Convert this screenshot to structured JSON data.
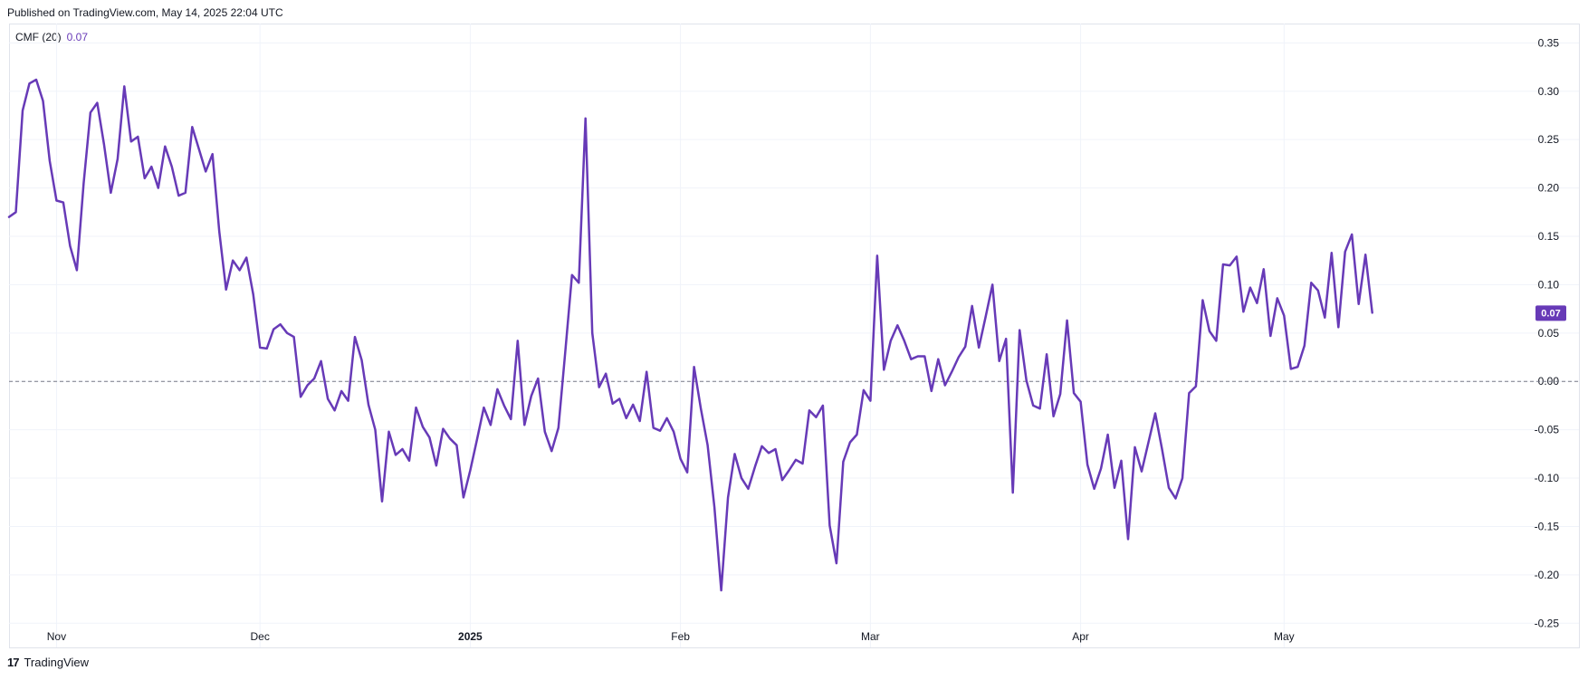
{
  "published": "Published on TradingView.com, May 14, 2025 22:04 UTC",
  "legend": {
    "name": "CMF (20)",
    "value": "0.07"
  },
  "brand": {
    "logo": "17",
    "name": "TradingView"
  },
  "colors": {
    "line": "#673ab7",
    "grid": "#f0f3fa",
    "zero": "#787b86",
    "axis_text": "#131722"
  },
  "chart_data": {
    "type": "line",
    "title": "",
    "xlabel": "",
    "ylabel": "",
    "ylim": [
      -0.275,
      0.37
    ],
    "y_ticks": [
      0.35,
      0.3,
      0.25,
      0.2,
      0.15,
      0.1,
      0.05,
      0.0,
      -0.05,
      -0.1,
      -0.15,
      -0.2,
      -0.25
    ],
    "y_tick_labels": [
      "0.35",
      "0.30",
      "0.25",
      "0.20",
      "0.15",
      "0.10",
      "0.05",
      "0.00",
      "-0.05",
      "-0.10",
      "-0.15",
      "-0.20",
      "-0.25"
    ],
    "x_ticks": [
      {
        "date": "2024-11-01",
        "label": "Nov"
      },
      {
        "date": "2024-12-01",
        "label": "Dec"
      },
      {
        "date": "2025-01-01",
        "label": "2025"
      },
      {
        "date": "2025-02-01",
        "label": "Feb"
      },
      {
        "date": "2025-03-01",
        "label": "Mar"
      },
      {
        "date": "2025-04-01",
        "label": "Apr"
      },
      {
        "date": "2025-05-01",
        "label": "May"
      }
    ],
    "x_range": [
      "2024-10-25",
      "2025-06-06"
    ],
    "reference_line": 0,
    "last_value_label": "0.07",
    "series": [
      {
        "values": [
          [
            "2024-10-25",
            0.17
          ],
          [
            "2024-10-26",
            0.175
          ],
          [
            "2024-10-27",
            0.28
          ],
          [
            "2024-10-28",
            0.308
          ],
          [
            "2024-10-29",
            0.312
          ],
          [
            "2024-10-30",
            0.29
          ],
          [
            "2024-10-31",
            0.228
          ],
          [
            "2024-11-01",
            0.187
          ],
          [
            "2024-11-02",
            0.185
          ],
          [
            "2024-11-03",
            0.14
          ],
          [
            "2024-11-04",
            0.115
          ],
          [
            "2024-11-05",
            0.205
          ],
          [
            "2024-11-06",
            0.278
          ],
          [
            "2024-11-07",
            0.288
          ],
          [
            "2024-11-08",
            0.245
          ],
          [
            "2024-11-09",
            0.195
          ],
          [
            "2024-11-10",
            0.23
          ],
          [
            "2024-11-11",
            0.305
          ],
          [
            "2024-11-12",
            0.248
          ],
          [
            "2024-11-13",
            0.253
          ],
          [
            "2024-11-14",
            0.21
          ],
          [
            "2024-11-15",
            0.222
          ],
          [
            "2024-11-16",
            0.2
          ],
          [
            "2024-11-17",
            0.243
          ],
          [
            "2024-11-18",
            0.222
          ],
          [
            "2024-11-19",
            0.192
          ],
          [
            "2024-11-20",
            0.195
          ],
          [
            "2024-11-21",
            0.263
          ],
          [
            "2024-11-22",
            0.24
          ],
          [
            "2024-11-23",
            0.217
          ],
          [
            "2024-11-24",
            0.235
          ],
          [
            "2024-11-25",
            0.155
          ],
          [
            "2024-11-26",
            0.095
          ],
          [
            "2024-11-27",
            0.125
          ],
          [
            "2024-11-28",
            0.115
          ],
          [
            "2024-11-29",
            0.128
          ],
          [
            "2024-11-30",
            0.09
          ],
          [
            "2024-12-01",
            0.035
          ],
          [
            "2024-12-02",
            0.034
          ],
          [
            "2024-12-03",
            0.054
          ],
          [
            "2024-12-04",
            0.059
          ],
          [
            "2024-12-05",
            0.05
          ],
          [
            "2024-12-06",
            0.046
          ],
          [
            "2024-12-07",
            -0.016
          ],
          [
            "2024-12-08",
            -0.004
          ],
          [
            "2024-12-09",
            0.003
          ],
          [
            "2024-12-10",
            0.021
          ],
          [
            "2024-12-11",
            -0.018
          ],
          [
            "2024-12-12",
            -0.03
          ],
          [
            "2024-12-13",
            -0.01
          ],
          [
            "2024-12-14",
            -0.02
          ],
          [
            "2024-12-15",
            0.046
          ],
          [
            "2024-12-16",
            0.022
          ],
          [
            "2024-12-17",
            -0.024
          ],
          [
            "2024-12-18",
            -0.05
          ],
          [
            "2024-12-19",
            -0.124
          ],
          [
            "2024-12-20",
            -0.052
          ],
          [
            "2024-12-21",
            -0.076
          ],
          [
            "2024-12-22",
            -0.07
          ],
          [
            "2024-12-23",
            -0.082
          ],
          [
            "2024-12-24",
            -0.027
          ],
          [
            "2024-12-25",
            -0.047
          ],
          [
            "2024-12-26",
            -0.058
          ],
          [
            "2024-12-27",
            -0.087
          ],
          [
            "2024-12-28",
            -0.049
          ],
          [
            "2024-12-29",
            -0.059
          ],
          [
            "2024-12-30",
            -0.066
          ],
          [
            "2024-12-31",
            -0.12
          ],
          [
            "2025-01-01",
            -0.092
          ],
          [
            "2025-01-02",
            -0.06
          ],
          [
            "2025-01-03",
            -0.027
          ],
          [
            "2025-01-04",
            -0.045
          ],
          [
            "2025-01-05",
            -0.008
          ],
          [
            "2025-01-06",
            -0.025
          ],
          [
            "2025-01-07",
            -0.039
          ],
          [
            "2025-01-08",
            0.042
          ],
          [
            "2025-01-09",
            -0.045
          ],
          [
            "2025-01-10",
            -0.015
          ],
          [
            "2025-01-11",
            0.003
          ],
          [
            "2025-01-12",
            -0.052
          ],
          [
            "2025-01-13",
            -0.072
          ],
          [
            "2025-01-14",
            -0.048
          ],
          [
            "2025-01-15",
            0.03
          ],
          [
            "2025-01-16",
            0.11
          ],
          [
            "2025-01-17",
            0.102
          ],
          [
            "2025-01-18",
            0.272
          ],
          [
            "2025-01-19",
            0.05
          ],
          [
            "2025-01-20",
            -0.006
          ],
          [
            "2025-01-21",
            0.008
          ],
          [
            "2025-01-22",
            -0.023
          ],
          [
            "2025-01-23",
            -0.018
          ],
          [
            "2025-01-24",
            -0.038
          ],
          [
            "2025-01-25",
            -0.024
          ],
          [
            "2025-01-26",
            -0.041
          ],
          [
            "2025-01-27",
            0.01
          ],
          [
            "2025-01-28",
            -0.048
          ],
          [
            "2025-01-29",
            -0.051
          ],
          [
            "2025-01-30",
            -0.038
          ],
          [
            "2025-01-31",
            -0.052
          ],
          [
            "2025-02-01",
            -0.08
          ],
          [
            "2025-02-02",
            -0.094
          ],
          [
            "2025-02-03",
            0.015
          ],
          [
            "2025-02-04",
            -0.028
          ],
          [
            "2025-02-05",
            -0.066
          ],
          [
            "2025-02-06",
            -0.13
          ],
          [
            "2025-02-07",
            -0.216
          ],
          [
            "2025-02-08",
            -0.12
          ],
          [
            "2025-02-09",
            -0.075
          ],
          [
            "2025-02-10",
            -0.1
          ],
          [
            "2025-02-11",
            -0.111
          ],
          [
            "2025-02-12",
            -0.088
          ],
          [
            "2025-02-13",
            -0.067
          ],
          [
            "2025-02-14",
            -0.074
          ],
          [
            "2025-02-15",
            -0.07
          ],
          [
            "2025-02-16",
            -0.102
          ],
          [
            "2025-02-17",
            -0.092
          ],
          [
            "2025-02-18",
            -0.081
          ],
          [
            "2025-02-19",
            -0.085
          ],
          [
            "2025-02-20",
            -0.03
          ],
          [
            "2025-02-21",
            -0.037
          ],
          [
            "2025-02-22",
            -0.025
          ],
          [
            "2025-02-23",
            -0.149
          ],
          [
            "2025-02-24",
            -0.188
          ],
          [
            "2025-02-25",
            -0.083
          ],
          [
            "2025-02-26",
            -0.063
          ],
          [
            "2025-02-27",
            -0.055
          ],
          [
            "2025-02-28",
            -0.009
          ],
          [
            "2025-03-01",
            -0.02
          ],
          [
            "2025-03-02",
            0.13
          ],
          [
            "2025-03-03",
            0.012
          ],
          [
            "2025-03-04",
            0.042
          ],
          [
            "2025-03-05",
            0.058
          ],
          [
            "2025-03-06",
            0.042
          ],
          [
            "2025-03-07",
            0.023
          ],
          [
            "2025-03-08",
            0.026
          ],
          [
            "2025-03-09",
            0.026
          ],
          [
            "2025-03-10",
            -0.01
          ],
          [
            "2025-03-11",
            0.023
          ],
          [
            "2025-03-12",
            -0.004
          ],
          [
            "2025-03-13",
            0.01
          ],
          [
            "2025-03-14",
            0.025
          ],
          [
            "2025-03-15",
            0.036
          ],
          [
            "2025-03-16",
            0.078
          ],
          [
            "2025-03-17",
            0.035
          ],
          [
            "2025-03-18",
            0.067
          ],
          [
            "2025-03-19",
            0.1
          ],
          [
            "2025-03-20",
            0.021
          ],
          [
            "2025-03-21",
            0.044
          ],
          [
            "2025-03-22",
            -0.115
          ],
          [
            "2025-03-23",
            0.053
          ],
          [
            "2025-03-24",
            0.001
          ],
          [
            "2025-03-25",
            -0.025
          ],
          [
            "2025-03-26",
            -0.028
          ],
          [
            "2025-03-27",
            0.028
          ],
          [
            "2025-03-28",
            -0.036
          ],
          [
            "2025-03-29",
            -0.013
          ],
          [
            "2025-03-30",
            0.063
          ],
          [
            "2025-03-31",
            -0.012
          ],
          [
            "2025-04-01",
            -0.021
          ],
          [
            "2025-04-02",
            -0.086
          ],
          [
            "2025-04-03",
            -0.111
          ],
          [
            "2025-04-04",
            -0.09
          ],
          [
            "2025-04-05",
            -0.055
          ],
          [
            "2025-04-06",
            -0.11
          ],
          [
            "2025-04-07",
            -0.082
          ],
          [
            "2025-04-08",
            -0.163
          ],
          [
            "2025-04-09",
            -0.068
          ],
          [
            "2025-04-10",
            -0.093
          ],
          [
            "2025-04-11",
            -0.063
          ],
          [
            "2025-04-12",
            -0.033
          ],
          [
            "2025-04-13",
            -0.07
          ],
          [
            "2025-04-14",
            -0.11
          ],
          [
            "2025-04-15",
            -0.121
          ],
          [
            "2025-04-16",
            -0.1
          ],
          [
            "2025-04-17",
            -0.012
          ],
          [
            "2025-04-18",
            -0.005
          ],
          [
            "2025-04-19",
            0.084
          ],
          [
            "2025-04-20",
            0.052
          ],
          [
            "2025-04-21",
            0.042
          ],
          [
            "2025-04-22",
            0.121
          ],
          [
            "2025-04-23",
            0.12
          ],
          [
            "2025-04-24",
            0.129
          ],
          [
            "2025-04-25",
            0.072
          ],
          [
            "2025-04-26",
            0.097
          ],
          [
            "2025-04-27",
            0.081
          ],
          [
            "2025-04-28",
            0.116
          ],
          [
            "2025-04-29",
            0.047
          ],
          [
            "2025-04-30",
            0.086
          ],
          [
            "2025-05-01",
            0.068
          ],
          [
            "2025-05-02",
            0.013
          ],
          [
            "2025-05-03",
            0.015
          ],
          [
            "2025-05-04",
            0.037
          ],
          [
            "2025-05-05",
            0.102
          ],
          [
            "2025-05-06",
            0.094
          ],
          [
            "2025-05-07",
            0.066
          ],
          [
            "2025-05-08",
            0.133
          ],
          [
            "2025-05-09",
            0.056
          ],
          [
            "2025-05-10",
            0.134
          ],
          [
            "2025-05-11",
            0.152
          ],
          [
            "2025-05-12",
            0.08
          ],
          [
            "2025-05-13",
            0.131
          ],
          [
            "2025-05-14",
            0.071
          ]
        ]
      }
    ]
  }
}
